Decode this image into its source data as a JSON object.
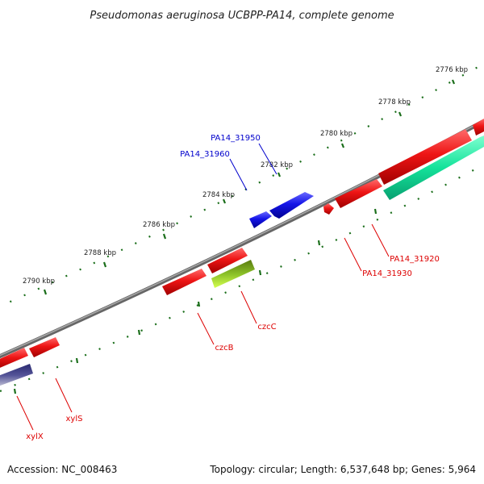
{
  "title": "Pseudomonas aeruginosa UCBPP-PA14, complete genome",
  "footer": {
    "accession": "Accession: NC_008463",
    "summary": "Topology: circular; Length: 6,537,648 bp; Genes: 5,964"
  },
  "tick_labels": [
    "2776 kbp",
    "2778 kbp",
    "2780 kbp",
    "2782 kbp",
    "2784 kbp",
    "2786 kbp",
    "2788 kbp",
    "2790 kbp"
  ],
  "gene_labels": [
    "PA14_31950",
    "PA14_31960",
    "PA14_31920",
    "PA14_31930",
    "czcC",
    "czcB",
    "xylS",
    "xylX"
  ],
  "colors": {
    "backbone": "#7a7a7a",
    "gene_forward_label": "#0000cc",
    "gene_reverse_label": "#dd0000",
    "red_gene": "#e81010",
    "blue_gene": "#1a1ae0",
    "teal_gene": "#18e8a0",
    "olive_gene": "#77b020",
    "navy_gene": "#3a3a88",
    "tick_green": "#1a6e1a"
  }
}
